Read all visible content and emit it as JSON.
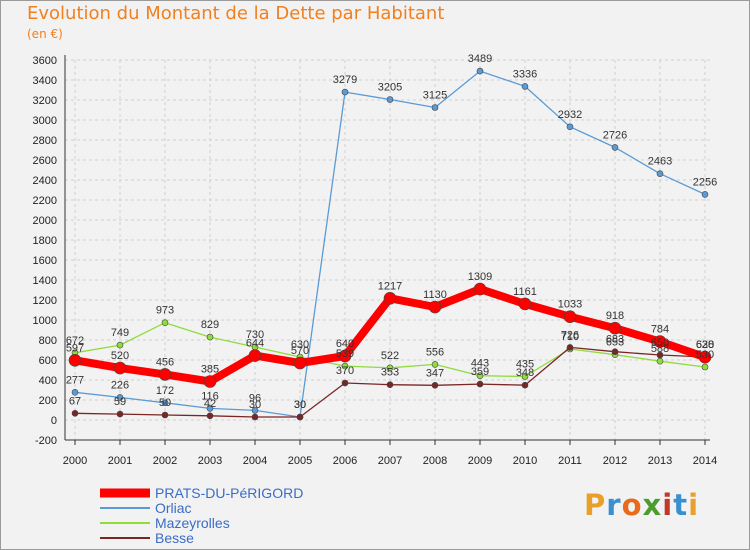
{
  "title": "Evolution du Montant de la Dette par Habitant",
  "unit": "(en €)",
  "logo": {
    "text": "Proxiti",
    "colors": [
      "#e9a02a",
      "#3a8fd1",
      "#e86a1a",
      "#4c9c2e",
      "#c03a2a",
      "#3a8fd1",
      "#e9a02a"
    ]
  },
  "chart_data": {
    "type": "line",
    "x": [
      "2000",
      "2001",
      "2002",
      "2003",
      "2004",
      "2005",
      "2006",
      "2007",
      "2008",
      "2009",
      "2010",
      "2011",
      "2012",
      "2013",
      "2014"
    ],
    "ylim": [
      -200,
      3600
    ],
    "yticks": [
      -200,
      0,
      200,
      400,
      600,
      800,
      1000,
      1200,
      1400,
      1600,
      1800,
      2000,
      2200,
      2400,
      2600,
      2800,
      3000,
      3200,
      3400,
      3600
    ],
    "grid": true,
    "legend_position": "bottom-left",
    "series": [
      {
        "name": "PRATS-DU-PéRIGORD",
        "color": "#ff0000",
        "values": [
          597,
          520,
          456,
          385,
          644,
          570,
          640,
          1217,
          1130,
          1309,
          1161,
          1033,
          918,
          784,
          628
        ]
      },
      {
        "name": "Orliac",
        "color": "#5b9bd5",
        "values": [
          277,
          226,
          172,
          116,
          96,
          30,
          3279,
          3205,
          3125,
          3489,
          3336,
          2932,
          2726,
          2463,
          2256
        ]
      },
      {
        "name": "Mazeyrolles",
        "color": "#8fdc3c",
        "values": [
          672,
          749,
          973,
          829,
          730,
          630,
          539,
          522,
          556,
          443,
          435,
          710,
          653,
          588,
          530
        ]
      },
      {
        "name": "Besse",
        "color": "#7b2626",
        "values": [
          67,
          59,
          50,
          42,
          30,
          30,
          370,
          353,
          347,
          359,
          348,
          726,
          683,
          650,
          630
        ]
      }
    ]
  }
}
